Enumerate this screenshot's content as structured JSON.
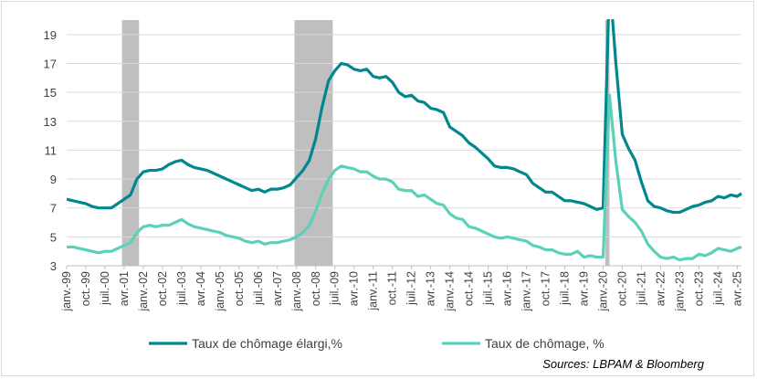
{
  "chart_data": {
    "type": "line",
    "title": "",
    "xlabel": "",
    "ylabel": "",
    "ylim": [
      3,
      20
    ],
    "yticks": [
      3,
      5,
      7,
      9,
      11,
      13,
      15,
      17,
      19
    ],
    "x_range": [
      "1999-01",
      "2025-06"
    ],
    "x_tick_labels": [
      "janv.-99",
      "oct.-99",
      "juil.-00",
      "avr.-01",
      "janv.-02",
      "oct.-02",
      "juil.-03",
      "avr.-04",
      "janv.-05",
      "oct.-05",
      "juil.-06",
      "avr.-07",
      "janv.-08",
      "oct.-08",
      "juil.-09",
      "avr.-10",
      "janv.-11",
      "oct.-11",
      "juil.-12",
      "avr.-13",
      "janv.-14",
      "oct.-14",
      "juil.-15",
      "avr.-16",
      "janv.-17",
      "oct.-17",
      "juil.-18",
      "avr.-19",
      "janv.-20",
      "oct.-20",
      "juil.-21",
      "avr.-22",
      "janv.-23",
      "oct.-23",
      "juil.-24",
      "avr.-25"
    ],
    "grid": "horizontal",
    "legend": "bottom",
    "recession_periods": [
      [
        "2001-03",
        "2001-11"
      ],
      [
        "2007-12",
        "2009-06"
      ],
      [
        "2020-02",
        "2020-04"
      ]
    ],
    "recession_color": "#bfbfbf",
    "series": [
      {
        "name": "Taux de chômage élargi,%",
        "color": "#00878f",
        "points": [
          [
            "1999-01",
            7.6
          ],
          [
            "1999-04",
            7.5
          ],
          [
            "1999-07",
            7.4
          ],
          [
            "1999-10",
            7.3
          ],
          [
            "2000-01",
            7.1
          ],
          [
            "2000-04",
            7.0
          ],
          [
            "2000-07",
            7.0
          ],
          [
            "2000-10",
            7.0
          ],
          [
            "2001-01",
            7.3
          ],
          [
            "2001-04",
            7.6
          ],
          [
            "2001-07",
            7.9
          ],
          [
            "2001-10",
            9.0
          ],
          [
            "2002-01",
            9.5
          ],
          [
            "2002-04",
            9.6
          ],
          [
            "2002-07",
            9.6
          ],
          [
            "2002-10",
            9.7
          ],
          [
            "2003-01",
            10.0
          ],
          [
            "2003-04",
            10.2
          ],
          [
            "2003-07",
            10.3
          ],
          [
            "2003-10",
            10.0
          ],
          [
            "2004-01",
            9.8
          ],
          [
            "2004-04",
            9.7
          ],
          [
            "2004-07",
            9.6
          ],
          [
            "2004-10",
            9.4
          ],
          [
            "2005-01",
            9.2
          ],
          [
            "2005-04",
            9.0
          ],
          [
            "2005-07",
            8.8
          ],
          [
            "2005-10",
            8.6
          ],
          [
            "2006-01",
            8.4
          ],
          [
            "2006-04",
            8.2
          ],
          [
            "2006-07",
            8.3
          ],
          [
            "2006-10",
            8.1
          ],
          [
            "2007-01",
            8.3
          ],
          [
            "2007-04",
            8.3
          ],
          [
            "2007-07",
            8.4
          ],
          [
            "2007-10",
            8.6
          ],
          [
            "2008-01",
            9.1
          ],
          [
            "2008-04",
            9.6
          ],
          [
            "2008-07",
            10.3
          ],
          [
            "2008-10",
            11.8
          ],
          [
            "2009-01",
            14.0
          ],
          [
            "2009-04",
            15.8
          ],
          [
            "2009-07",
            16.5
          ],
          [
            "2009-10",
            17.0
          ],
          [
            "2010-01",
            16.9
          ],
          [
            "2010-04",
            16.6
          ],
          [
            "2010-07",
            16.5
          ],
          [
            "2010-10",
            16.6
          ],
          [
            "2011-01",
            16.1
          ],
          [
            "2011-04",
            16.0
          ],
          [
            "2011-07",
            16.1
          ],
          [
            "2011-10",
            15.7
          ],
          [
            "2012-01",
            15.0
          ],
          [
            "2012-04",
            14.7
          ],
          [
            "2012-07",
            14.8
          ],
          [
            "2012-10",
            14.4
          ],
          [
            "2013-01",
            14.3
          ],
          [
            "2013-04",
            13.9
          ],
          [
            "2013-07",
            13.8
          ],
          [
            "2013-10",
            13.6
          ],
          [
            "2014-01",
            12.6
          ],
          [
            "2014-04",
            12.3
          ],
          [
            "2014-07",
            12.0
          ],
          [
            "2014-10",
            11.5
          ],
          [
            "2015-01",
            11.2
          ],
          [
            "2015-04",
            10.8
          ],
          [
            "2015-07",
            10.4
          ],
          [
            "2015-10",
            9.9
          ],
          [
            "2016-01",
            9.8
          ],
          [
            "2016-04",
            9.8
          ],
          [
            "2016-07",
            9.7
          ],
          [
            "2016-10",
            9.5
          ],
          [
            "2017-01",
            9.3
          ],
          [
            "2017-04",
            8.7
          ],
          [
            "2017-07",
            8.4
          ],
          [
            "2017-10",
            8.1
          ],
          [
            "2018-01",
            8.1
          ],
          [
            "2018-04",
            7.8
          ],
          [
            "2018-07",
            7.5
          ],
          [
            "2018-10",
            7.5
          ],
          [
            "2019-01",
            7.4
          ],
          [
            "2019-04",
            7.3
          ],
          [
            "2019-07",
            7.1
          ],
          [
            "2019-10",
            6.9
          ],
          [
            "2020-01",
            7.0
          ],
          [
            "2020-04",
            22.9
          ],
          [
            "2020-07",
            17.0
          ],
          [
            "2020-10",
            12.1
          ],
          [
            "2021-01",
            11.1
          ],
          [
            "2021-04",
            10.3
          ],
          [
            "2021-07",
            8.8
          ],
          [
            "2021-10",
            7.5
          ],
          [
            "2022-01",
            7.1
          ],
          [
            "2022-04",
            7.0
          ],
          [
            "2022-07",
            6.8
          ],
          [
            "2022-10",
            6.7
          ],
          [
            "2023-01",
            6.7
          ],
          [
            "2023-04",
            6.9
          ],
          [
            "2023-07",
            7.1
          ],
          [
            "2023-10",
            7.2
          ],
          [
            "2024-01",
            7.4
          ],
          [
            "2024-04",
            7.5
          ],
          [
            "2024-07",
            7.8
          ],
          [
            "2024-10",
            7.7
          ],
          [
            "2025-01",
            7.9
          ],
          [
            "2025-04",
            7.8
          ],
          [
            "2025-06",
            8.0
          ]
        ]
      },
      {
        "name": "Taux de chômage, %",
        "color": "#5ad1b8",
        "points": [
          [
            "1999-01",
            4.3
          ],
          [
            "1999-04",
            4.3
          ],
          [
            "1999-07",
            4.2
          ],
          [
            "1999-10",
            4.1
          ],
          [
            "2000-01",
            4.0
          ],
          [
            "2000-04",
            3.9
          ],
          [
            "2000-07",
            4.0
          ],
          [
            "2000-10",
            4.0
          ],
          [
            "2001-01",
            4.2
          ],
          [
            "2001-04",
            4.4
          ],
          [
            "2001-07",
            4.6
          ],
          [
            "2001-10",
            5.3
          ],
          [
            "2002-01",
            5.7
          ],
          [
            "2002-04",
            5.8
          ],
          [
            "2002-07",
            5.7
          ],
          [
            "2002-10",
            5.8
          ],
          [
            "2003-01",
            5.8
          ],
          [
            "2003-04",
            6.0
          ],
          [
            "2003-07",
            6.2
          ],
          [
            "2003-10",
            5.9
          ],
          [
            "2004-01",
            5.7
          ],
          [
            "2004-04",
            5.6
          ],
          [
            "2004-07",
            5.5
          ],
          [
            "2004-10",
            5.4
          ],
          [
            "2005-01",
            5.3
          ],
          [
            "2005-04",
            5.1
          ],
          [
            "2005-07",
            5.0
          ],
          [
            "2005-10",
            4.9
          ],
          [
            "2006-01",
            4.7
          ],
          [
            "2006-04",
            4.6
          ],
          [
            "2006-07",
            4.7
          ],
          [
            "2006-10",
            4.5
          ],
          [
            "2007-01",
            4.6
          ],
          [
            "2007-04",
            4.6
          ],
          [
            "2007-07",
            4.7
          ],
          [
            "2007-10",
            4.8
          ],
          [
            "2008-01",
            5.0
          ],
          [
            "2008-04",
            5.3
          ],
          [
            "2008-07",
            5.8
          ],
          [
            "2008-10",
            6.8
          ],
          [
            "2009-01",
            8.0
          ],
          [
            "2009-04",
            9.0
          ],
          [
            "2009-07",
            9.6
          ],
          [
            "2009-10",
            9.9
          ],
          [
            "2010-01",
            9.8
          ],
          [
            "2010-04",
            9.7
          ],
          [
            "2010-07",
            9.5
          ],
          [
            "2010-10",
            9.5
          ],
          [
            "2011-01",
            9.2
          ],
          [
            "2011-04",
            9.0
          ],
          [
            "2011-07",
            9.0
          ],
          [
            "2011-10",
            8.8
          ],
          [
            "2012-01",
            8.3
          ],
          [
            "2012-04",
            8.2
          ],
          [
            "2012-07",
            8.2
          ],
          [
            "2012-10",
            7.8
          ],
          [
            "2013-01",
            7.9
          ],
          [
            "2013-04",
            7.6
          ],
          [
            "2013-07",
            7.3
          ],
          [
            "2013-10",
            7.2
          ],
          [
            "2014-01",
            6.6
          ],
          [
            "2014-04",
            6.3
          ],
          [
            "2014-07",
            6.2
          ],
          [
            "2014-10",
            5.7
          ],
          [
            "2015-01",
            5.6
          ],
          [
            "2015-04",
            5.4
          ],
          [
            "2015-07",
            5.2
          ],
          [
            "2015-10",
            5.0
          ],
          [
            "2016-01",
            4.9
          ],
          [
            "2016-04",
            5.0
          ],
          [
            "2016-07",
            4.9
          ],
          [
            "2016-10",
            4.8
          ],
          [
            "2017-01",
            4.7
          ],
          [
            "2017-04",
            4.4
          ],
          [
            "2017-07",
            4.3
          ],
          [
            "2017-10",
            4.1
          ],
          [
            "2018-01",
            4.1
          ],
          [
            "2018-04",
            3.9
          ],
          [
            "2018-07",
            3.8
          ],
          [
            "2018-10",
            3.8
          ],
          [
            "2019-01",
            4.0
          ],
          [
            "2019-04",
            3.6
          ],
          [
            "2019-07",
            3.7
          ],
          [
            "2019-10",
            3.6
          ],
          [
            "2020-01",
            3.6
          ],
          [
            "2020-04",
            14.8
          ],
          [
            "2020-07",
            10.2
          ],
          [
            "2020-10",
            6.9
          ],
          [
            "2021-01",
            6.4
          ],
          [
            "2021-04",
            6.0
          ],
          [
            "2021-07",
            5.4
          ],
          [
            "2021-10",
            4.5
          ],
          [
            "2022-01",
            4.0
          ],
          [
            "2022-04",
            3.6
          ],
          [
            "2022-07",
            3.5
          ],
          [
            "2022-10",
            3.6
          ],
          [
            "2023-01",
            3.4
          ],
          [
            "2023-04",
            3.5
          ],
          [
            "2023-07",
            3.5
          ],
          [
            "2023-10",
            3.8
          ],
          [
            "2024-01",
            3.7
          ],
          [
            "2024-04",
            3.9
          ],
          [
            "2024-07",
            4.2
          ],
          [
            "2024-10",
            4.1
          ],
          [
            "2025-01",
            4.0
          ],
          [
            "2025-04",
            4.2
          ],
          [
            "2025-06",
            4.3
          ]
        ]
      }
    ],
    "source": "Sources: LBPAM & Bloomberg"
  }
}
